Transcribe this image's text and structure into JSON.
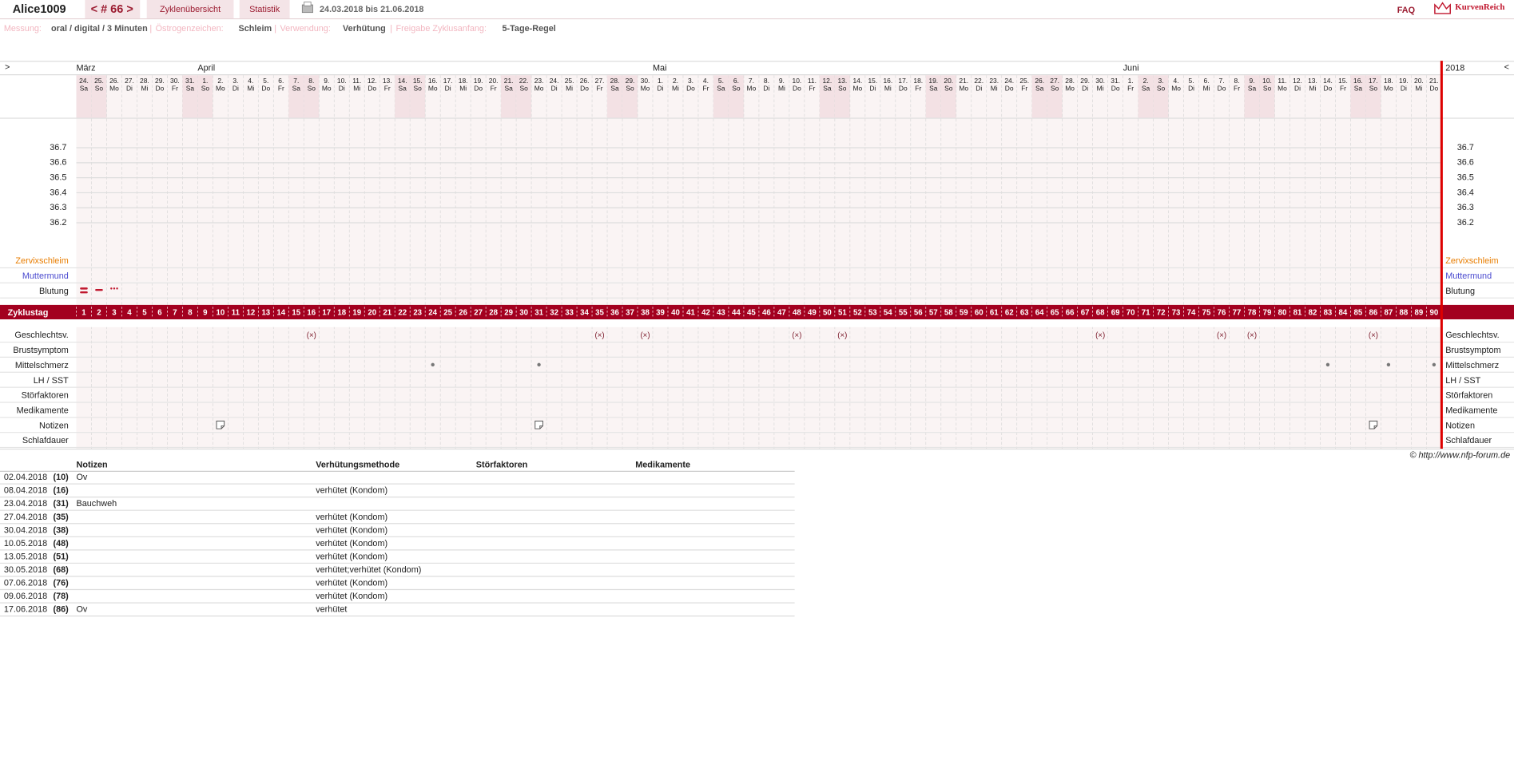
{
  "header": {
    "user": "Alice1009",
    "cycle": "< # 66 >",
    "tabs": [
      "Zyklenübersicht",
      "Statistik"
    ],
    "date_range": "24.03.2018 bis 21.06.2018",
    "faq": "FAQ",
    "brand": "KurvenReich"
  },
  "settings": {
    "separator": "|",
    "items": [
      {
        "label": "Messung:",
        "value": "oral / digital / 3 Minuten"
      },
      {
        "label": "Östrogenzeichen:",
        "value": "Schleim"
      },
      {
        "label": "Verwendung:",
        "value": "Verhütung"
      },
      {
        "label": "Freigabe Zyklusanfang:",
        "value": "5-Tage-Regel"
      }
    ]
  },
  "chart": {
    "nav_left": ">",
    "nav_right": "<",
    "year": "2018",
    "months": [
      "März",
      null,
      null,
      null,
      null,
      null,
      null,
      null,
      "April",
      null,
      null,
      null,
      null,
      null,
      null,
      null,
      null,
      null,
      null,
      null,
      null,
      null,
      null,
      null,
      null,
      null,
      null,
      null,
      null,
      null,
      null,
      null,
      null,
      null,
      null,
      null,
      null,
      null,
      "Mai",
      null,
      null,
      null,
      null,
      null,
      null,
      null,
      null,
      null,
      null,
      null,
      null,
      null,
      null,
      null,
      null,
      null,
      null,
      null,
      null,
      null,
      null,
      null,
      null,
      null,
      null,
      null,
      null,
      null,
      null,
      "Juni",
      null,
      null,
      null,
      null,
      null,
      null,
      null,
      null,
      null,
      null,
      null,
      null,
      null,
      null,
      null,
      null,
      null,
      null,
      null,
      null
    ],
    "dates": [
      "24.",
      "25.",
      "26.",
      "27.",
      "28.",
      "29.",
      "30.",
      "31.",
      "1.",
      "2.",
      "3.",
      "4.",
      "5.",
      "6.",
      "7.",
      "8.",
      "9.",
      "10.",
      "11.",
      "12.",
      "13.",
      "14.",
      "15.",
      "16.",
      "17.",
      "18.",
      "19.",
      "20.",
      "21.",
      "22.",
      "23.",
      "24.",
      "25.",
      "26.",
      "27.",
      "28.",
      "29.",
      "30.",
      "1.",
      "2.",
      "3.",
      "4.",
      "5.",
      "6.",
      "7.",
      "8.",
      "9.",
      "10.",
      "11.",
      "12.",
      "13.",
      "14.",
      "15.",
      "16.",
      "17.",
      "18.",
      "19.",
      "20.",
      "21.",
      "22.",
      "23.",
      "24.",
      "25.",
      "26.",
      "27.",
      "28.",
      "29.",
      "30.",
      "31.",
      "1.",
      "2.",
      "3.",
      "4.",
      "5.",
      "6.",
      "7.",
      "8.",
      "9.",
      "10.",
      "11.",
      "12.",
      "13.",
      "14.",
      "15.",
      "16.",
      "17.",
      "18.",
      "19.",
      "20.",
      "21."
    ],
    "weekdays": [
      "Sa",
      "So",
      "Mo",
      "Di",
      "Mi",
      "Do",
      "Fr",
      "Sa",
      "So",
      "Mo",
      "Di",
      "Mi",
      "Do",
      "Fr",
      "Sa",
      "So",
      "Mo",
      "Di",
      "Mi",
      "Do",
      "Fr",
      "Sa",
      "So",
      "Mo",
      "Di",
      "Mi",
      "Do",
      "Fr",
      "Sa",
      "So",
      "Mo",
      "Di",
      "Mi",
      "Do",
      "Fr",
      "Sa",
      "So",
      "Mo",
      "Di",
      "Mi",
      "Do",
      "Fr",
      "Sa",
      "So",
      "Mo",
      "Di",
      "Mi",
      "Do",
      "Fr",
      "Sa",
      "So",
      "Mo",
      "Di",
      "Mi",
      "Do",
      "Fr",
      "Sa",
      "So",
      "Mo",
      "Di",
      "Mi",
      "Do",
      "Fr",
      "Sa",
      "So",
      "Mo",
      "Di",
      "Mi",
      "Do",
      "Fr",
      "Sa",
      "So",
      "Mo",
      "Di",
      "Mi",
      "Do",
      "Fr",
      "Sa",
      "So",
      "Mo",
      "Di",
      "Mi",
      "Do",
      "Fr",
      "Sa",
      "So",
      "Mo",
      "Di",
      "Mi",
      "Do"
    ],
    "temperature": {
      "ylim": [
        36.0,
        36.9
      ],
      "yticks": [
        36.2,
        36.3,
        36.4,
        36.5,
        36.6,
        36.7
      ]
    },
    "rows_top": [
      "Zervixschleim",
      "Muttermund",
      "Blutung"
    ],
    "blutung_days": [
      1,
      2,
      3
    ],
    "zyklustag_label": "Zyklustag",
    "zyklustage": [
      1,
      2,
      3,
      4,
      5,
      6,
      7,
      8,
      9,
      10,
      11,
      12,
      13,
      14,
      15,
      16,
      17,
      18,
      19,
      20,
      21,
      22,
      23,
      24,
      25,
      26,
      27,
      28,
      29,
      30,
      31,
      32,
      33,
      34,
      35,
      36,
      37,
      38,
      39,
      40,
      41,
      42,
      43,
      44,
      45,
      46,
      47,
      48,
      49,
      50,
      51,
      52,
      53,
      54,
      55,
      56,
      57,
      58,
      59,
      60,
      61,
      62,
      63,
      64,
      65,
      66,
      67,
      68,
      69,
      70,
      71,
      72,
      73,
      74,
      75,
      76,
      77,
      78,
      79,
      80,
      81,
      82,
      83,
      84,
      85,
      86,
      87,
      88,
      89,
      90
    ],
    "rows_bottom": [
      "Geschlechtsv.",
      "Brustsymptom",
      "Mittelschmerz",
      "LH / SST",
      "Störfaktoren",
      "Medikamente",
      "Notizen",
      "Schlafdauer"
    ],
    "geschlechtsverkehr": {
      "symbol": "(×)",
      "days": [
        16,
        35,
        38,
        48,
        51,
        68,
        76,
        78,
        86
      ]
    },
    "mittelschmerz_days": [
      24,
      31,
      83,
      87,
      90
    ],
    "notizen_days": [
      10,
      31,
      86
    ]
  },
  "copyright": "© http://www.nfp-forum.de",
  "table": {
    "columns": [
      "Notizen",
      "Verhütungsmethode",
      "Störfaktoren",
      "Medikamente"
    ],
    "rows": [
      {
        "date": "02.04.2018",
        "day": "(10)",
        "notiz": "Ov"
      },
      {
        "date": "08.04.2018",
        "day": "(16)",
        "methode": "verhütet (Kondom)"
      },
      {
        "date": "23.04.2018",
        "day": "(31)",
        "notiz": "Bauchweh"
      },
      {
        "date": "27.04.2018",
        "day": "(35)",
        "methode": "verhütet (Kondom)"
      },
      {
        "date": "30.04.2018",
        "day": "(38)",
        "methode": "verhütet (Kondom)"
      },
      {
        "date": "10.05.2018",
        "day": "(48)",
        "methode": "verhütet (Kondom)"
      },
      {
        "date": "13.05.2018",
        "day": "(51)",
        "methode": "verhütet (Kondom)"
      },
      {
        "date": "30.05.2018",
        "day": "(68)",
        "methode": "verhütet;verhütet (Kondom)"
      },
      {
        "date": "07.06.2018",
        "day": "(76)",
        "methode": "verhütet (Kondom)"
      },
      {
        "date": "09.06.2018",
        "day": "(78)",
        "methode": "verhütet (Kondom)"
      },
      {
        "date": "17.06.2018",
        "day": "(86)",
        "notiz": "Ov",
        "methode": "verhütet"
      }
    ]
  }
}
